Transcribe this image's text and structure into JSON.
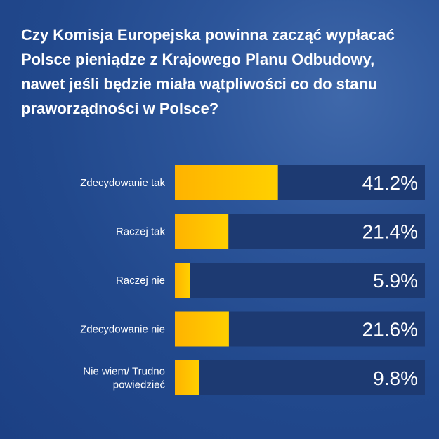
{
  "colors": {
    "background": "#244a8c",
    "track": "#1d3a72",
    "bar_start": "#ffb300",
    "bar_end": "#ffd000",
    "text": "#ffffff"
  },
  "chart_data": {
    "type": "bar",
    "orientation": "horizontal",
    "title": "Czy Komisja Europejska powinna zacząć wypłacać Polsce pieniądze z Krajowego Planu Odbudowy, nawet jeśli będzie miała wątpliwości co do stanu praworządności w Polsce?",
    "categories": [
      [
        "Zdecydowanie tak"
      ],
      [
        "Raczej tak"
      ],
      [
        "Raczej nie"
      ],
      [
        "Zdecydowanie nie"
      ],
      [
        "Nie wiem/ Trudno",
        "powiedzieć"
      ]
    ],
    "values": [
      41.2,
      21.4,
      5.9,
      21.6,
      9.8
    ],
    "value_labels": [
      "41.2%",
      "21.4%",
      "5.9%",
      "21.6%",
      "9.8%"
    ],
    "unit": "%",
    "xlim": [
      0,
      100
    ],
    "grid": false,
    "legend": "none"
  }
}
